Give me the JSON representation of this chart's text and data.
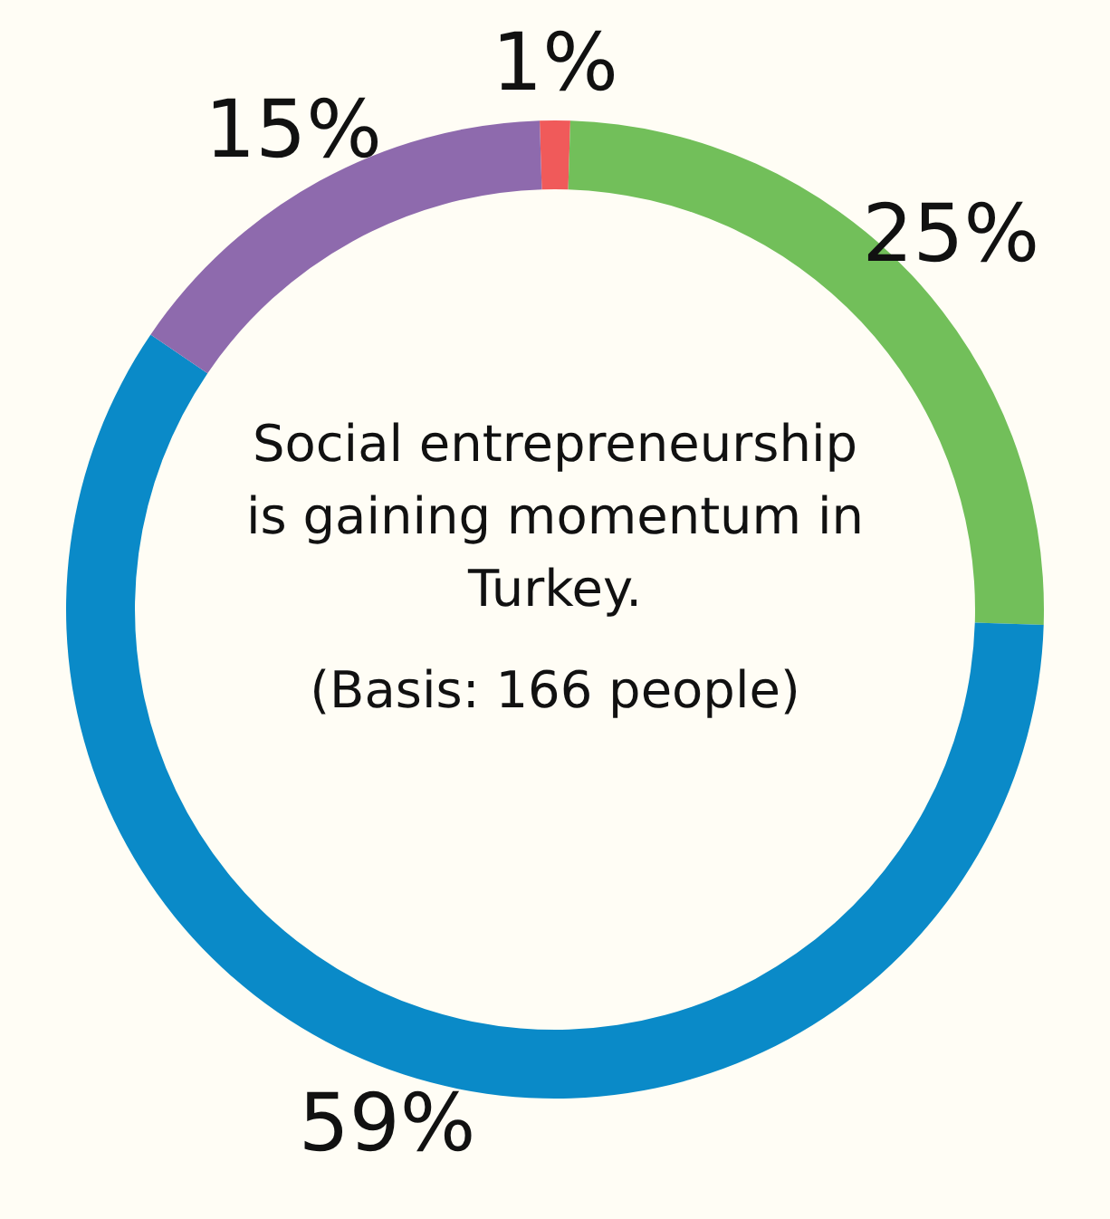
{
  "chart_data": {
    "type": "donut",
    "title": "Social entrepreneurship is gaining momentum in Turkey.",
    "subtitle": "(Basis: 166 people)",
    "categories": [
      null,
      null,
      null,
      null
    ],
    "values": [
      1,
      25,
      59,
      15
    ],
    "colors": [
      "#f05a5a",
      "#72bf5a",
      "#0a8ac8",
      "#8e6aad"
    ],
    "value_labels": [
      "1%",
      "25%",
      "59%",
      "15%"
    ]
  }
}
